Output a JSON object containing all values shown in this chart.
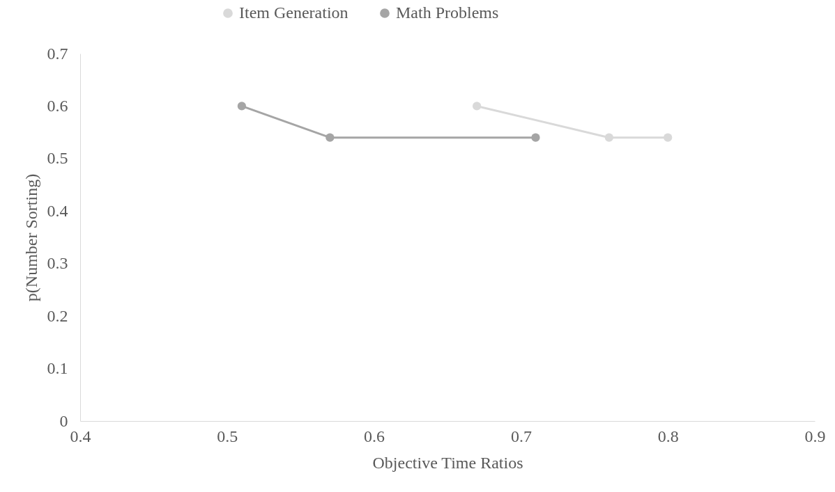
{
  "chart_data": {
    "type": "line",
    "xlabel": "Objective Time Ratios",
    "ylabel": "p(Number Sorting)",
    "series": [
      {
        "name": "Item Generation",
        "color": "#d9d9d9",
        "x": [
          0.67,
          0.76,
          0.8
        ],
        "values": [
          0.6,
          0.54,
          0.54
        ]
      },
      {
        "name": "Math Problems",
        "color": "#a5a5a5",
        "x": [
          0.51,
          0.57,
          0.71
        ],
        "values": [
          0.6,
          0.54,
          0.54
        ]
      }
    ],
    "xlim": [
      0.4,
      0.9
    ],
    "xticks": [
      0.4,
      0.5,
      0.6,
      0.7,
      0.8,
      0.9
    ],
    "ylim": [
      0,
      0.7
    ],
    "yticks": [
      0,
      0.1,
      0.2,
      0.3,
      0.4,
      0.5,
      0.6,
      0.7
    ],
    "grid": false,
    "legend": "top",
    "marker": "circle",
    "line_style": "solid"
  }
}
